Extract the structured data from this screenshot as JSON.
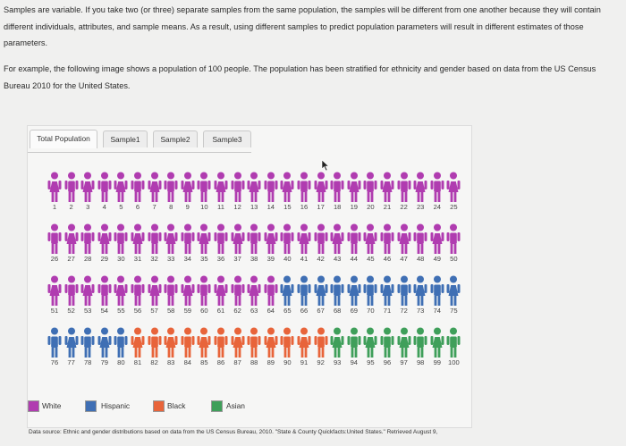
{
  "intro": {
    "paragraph1": "Samples are variable. If you take two (or three) separate samples from the same population, the samples will be different from one another because they will contain different individuals, attributes, and sample means. As a result, using different samples to predict population parameters will result in different estimates of those parameters.",
    "paragraph2": "For example, the following image shows a population of 100 people. The population has been stratified for ethnicity and gender based on data from the US Census Bureau 2010 for the United States."
  },
  "tabs": [
    {
      "label": "Total Population",
      "active": true
    },
    {
      "label": "Sample1",
      "active": false
    },
    {
      "label": "Sample2",
      "active": false
    },
    {
      "label": "Sample3",
      "active": false
    }
  ],
  "population": {
    "total": 100,
    "groups": [
      {
        "label": "White",
        "color": "#b03cb0",
        "range": [
          1,
          64
        ]
      },
      {
        "label": "Hispanic",
        "color": "#3f6fb4",
        "range": [
          65,
          80
        ]
      },
      {
        "label": "Black",
        "color": "#e8643a",
        "range": [
          81,
          92
        ]
      },
      {
        "label": "Asian",
        "color": "#3f9f5a",
        "range": [
          93,
          100
        ]
      }
    ]
  },
  "legend": [
    {
      "label": "White",
      "color": "#b03cb0"
    },
    {
      "label": "Hispanic",
      "color": "#3f6fb4"
    },
    {
      "label": "Black",
      "color": "#e8643a"
    },
    {
      "label": "Asian",
      "color": "#3f9f5a"
    }
  ],
  "source": "Data source: Ethnic and gender distributions based on data from the US Census Bureau, 2010. \"State & County Quickfacts:United States.\" Retrieved August 9,"
}
